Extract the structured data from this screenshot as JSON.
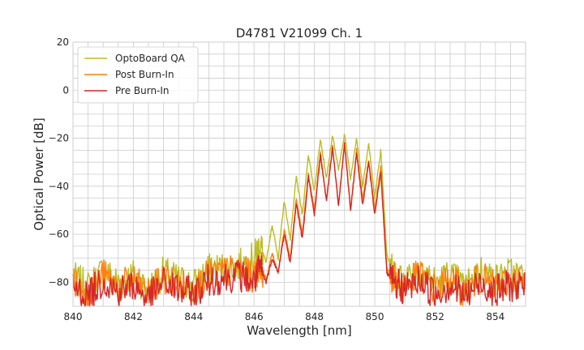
{
  "chart_data": {
    "type": "line",
    "title": "D4781 V21099 Ch. 1",
    "xlabel": "Wavelength [nm]",
    "ylabel": "Optical Power [dB]",
    "xlim": [
      840,
      855
    ],
    "ylim": [
      -90,
      20
    ],
    "xticks": [
      "840",
      "842",
      "844",
      "846",
      "848",
      "850",
      "852",
      "854"
    ],
    "xtick_values": [
      840,
      842,
      844,
      846,
      848,
      850,
      852,
      854
    ],
    "yticks": [
      "20",
      "0",
      "−20",
      "−40",
      "−60",
      "−80"
    ],
    "ytick_values": [
      20,
      0,
      -20,
      -40,
      -60,
      -80
    ],
    "grid": true,
    "legend": "top-left",
    "series": [
      {
        "name": "OptoBoard QA",
        "color": "#bcbd22",
        "x": [
          840.0,
          840.5,
          841.0,
          841.5,
          842.0,
          842.5,
          843.0,
          843.5,
          844.0,
          844.5,
          845.0,
          845.5,
          846.0,
          846.2,
          846.4,
          846.6,
          846.8,
          847.0,
          847.2,
          847.4,
          847.6,
          847.8,
          848.0,
          848.2,
          848.4,
          848.6,
          848.8,
          849.0,
          849.2,
          849.4,
          849.6,
          849.8,
          850.0,
          850.2,
          850.4,
          850.6,
          851.0,
          851.5,
          852.0,
          852.5,
          853.0,
          853.5,
          854.0,
          854.5,
          855.0
        ],
        "y": [
          -78,
          -82,
          -75,
          -80,
          -77,
          -83,
          -76,
          -79,
          -81,
          -75,
          -74,
          -73,
          -70,
          -64,
          -72,
          -56,
          -70,
          -46,
          -62,
          -36,
          -52,
          -27,
          -42,
          -20,
          -37,
          -19,
          -33,
          -18,
          -37,
          -20,
          -40,
          -22,
          -45,
          -25,
          -68,
          -76,
          -78,
          -74,
          -80,
          -77,
          -82,
          -75,
          -79,
          -76,
          -78
        ]
      },
      {
        "name": "Post Burn-In",
        "color": "#ff7f0e",
        "x": [
          840.0,
          840.5,
          841.0,
          841.5,
          842.0,
          842.5,
          843.0,
          843.5,
          844.0,
          844.5,
          845.0,
          845.5,
          846.0,
          846.2,
          846.4,
          846.6,
          846.8,
          847.0,
          847.2,
          847.4,
          847.6,
          847.8,
          848.0,
          848.2,
          848.4,
          848.6,
          848.8,
          849.0,
          849.2,
          849.4,
          849.6,
          849.8,
          850.0,
          850.2,
          850.4,
          850.6,
          851.0,
          851.5,
          852.0,
          852.5,
          853.0,
          853.5,
          854.0,
          854.5,
          855.0
        ],
        "y": [
          -80,
          -84,
          -77,
          -82,
          -79,
          -85,
          -78,
          -81,
          -83,
          -77,
          -76,
          -75,
          -78,
          -72,
          -79,
          -68,
          -76,
          -58,
          -70,
          -45,
          -60,
          -35,
          -50,
          -26,
          -46,
          -23,
          -48,
          -22,
          -50,
          -25,
          -46,
          -29,
          -50,
          -32,
          -74,
          -78,
          -81,
          -77,
          -83,
          -79,
          -84,
          -78,
          -82,
          -79,
          -81
        ]
      },
      {
        "name": "Pre Burn-In",
        "color": "#d62728",
        "x": [
          840.0,
          840.5,
          841.0,
          841.5,
          842.0,
          842.5,
          843.0,
          843.5,
          844.0,
          844.5,
          845.0,
          845.5,
          846.0,
          846.2,
          846.4,
          846.6,
          846.8,
          847.0,
          847.2,
          847.4,
          847.6,
          847.8,
          848.0,
          848.2,
          848.4,
          848.6,
          848.8,
          849.0,
          849.2,
          849.4,
          849.6,
          849.8,
          850.0,
          850.2,
          850.4,
          850.6,
          851.0,
          851.5,
          852.0,
          852.5,
          853.0,
          853.5,
          854.0,
          854.5,
          855.0
        ],
        "y": [
          -82,
          -86,
          -79,
          -84,
          -81,
          -87,
          -80,
          -83,
          -85,
          -79,
          -78,
          -77,
          -80,
          -74,
          -80,
          -70,
          -76,
          -60,
          -72,
          -47,
          -62,
          -36,
          -52,
          -27,
          -46,
          -24,
          -48,
          -22,
          -50,
          -26,
          -48,
          -30,
          -52,
          -34,
          -76,
          -80,
          -83,
          -79,
          -85,
          -81,
          -86,
          -80,
          -84,
          -81,
          -83
        ]
      }
    ]
  }
}
